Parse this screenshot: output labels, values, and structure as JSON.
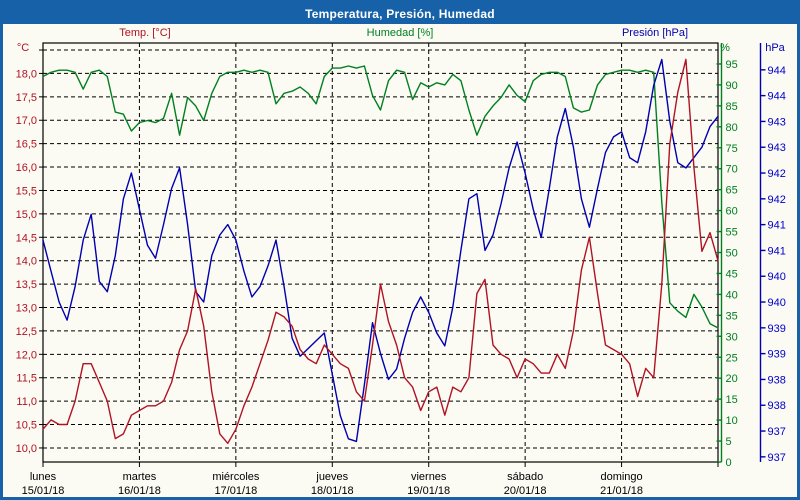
{
  "window": {
    "title": "Temperatura, Presión, Humedad"
  },
  "axis_headers": {
    "temp": "°C",
    "hum": "%",
    "pres": "hPa"
  },
  "theme": {
    "frame_blue": "#1661a8",
    "title_text": "#ffffff",
    "grid_color": "#000000",
    "temp_color": "#b01323",
    "hum_color": "#008020",
    "pres_color": "#0000b0",
    "pres_label_color": "#0000cc",
    "day_label_color": "#000000"
  },
  "chart_data": {
    "type": "line",
    "title": "Temperatura, Presión, Humedad",
    "x_unit": "hours",
    "x_range": [
      0,
      168
    ],
    "x_step_hours": 2,
    "grid": "dashed",
    "days": [
      {
        "name": "lunes",
        "date": "15/01/18"
      },
      {
        "name": "martes",
        "date": "16/01/18"
      },
      {
        "name": "miércoles",
        "date": "17/01/18"
      },
      {
        "name": "jueves",
        "date": "18/01/18"
      },
      {
        "name": "viernes",
        "date": "19/01/18"
      },
      {
        "name": "sábado",
        "date": "20/01/18"
      },
      {
        "name": "domingo",
        "date": "21/01/18"
      }
    ],
    "series": [
      {
        "name": "Temp. [°C]",
        "unit": "°C",
        "color": "#b01323",
        "axis": {
          "side": "left",
          "tick_min": 10.0,
          "tick_max": 18.5,
          "label_max": 18.0,
          "step": 0.5,
          "scale": [
            9.7,
            18.65
          ],
          "decimal_comma": true
        },
        "values": [
          10.4,
          10.6,
          10.5,
          10.5,
          11.0,
          11.8,
          11.8,
          11.4,
          11.0,
          10.2,
          10.3,
          10.7,
          10.8,
          10.9,
          10.9,
          11.0,
          11.4,
          12.1,
          12.5,
          13.4,
          12.6,
          11.2,
          10.3,
          10.1,
          10.4,
          10.9,
          11.3,
          11.8,
          12.3,
          12.9,
          12.8,
          12.6,
          12.1,
          11.9,
          11.8,
          12.2,
          12.0,
          11.8,
          11.7,
          11.2,
          11.0,
          12.2,
          13.5,
          12.7,
          12.2,
          11.5,
          11.3,
          10.8,
          11.2,
          11.3,
          10.7,
          11.3,
          11.2,
          11.5,
          13.3,
          13.6,
          12.2,
          12.0,
          11.9,
          11.5,
          11.9,
          11.8,
          11.6,
          11.6,
          12.0,
          11.7,
          12.5,
          13.8,
          14.5,
          13.3,
          12.2,
          12.1,
          12.0,
          11.8,
          11.1,
          11.7,
          11.5,
          13.5,
          16.5,
          17.6,
          18.3,
          16.0,
          14.2,
          14.6,
          14.0
        ]
      },
      {
        "name": "Humedad [%]",
        "unit": "%",
        "color": "#008020",
        "axis": {
          "side": "right-inner",
          "tick_min": 0,
          "tick_max": 95,
          "label_max": 95,
          "step": 5,
          "scale": [
            0,
            100
          ],
          "decimal_comma": false
        },
        "values": [
          92,
          93,
          93.5,
          93.5,
          93,
          89,
          93,
          93.5,
          92,
          83.5,
          83,
          79,
          81,
          81.5,
          81,
          82,
          88,
          78,
          87,
          85,
          81.5,
          88,
          92,
          93,
          93,
          93.5,
          93,
          93.5,
          93,
          85.5,
          88,
          88.5,
          89.5,
          88,
          85.5,
          92,
          94,
          94,
          94.5,
          94,
          94.5,
          87.5,
          84,
          91,
          93.5,
          93,
          86.5,
          90.5,
          89.5,
          90.5,
          90,
          92.5,
          91,
          84,
          78,
          82.5,
          85,
          87,
          90,
          87.5,
          86,
          91,
          92.5,
          93,
          93,
          92,
          84.5,
          83.5,
          84,
          90,
          92.5,
          93,
          93.5,
          93.5,
          93,
          93.5,
          93,
          62,
          38,
          36,
          34.5,
          40,
          37,
          33,
          32
        ]
      },
      {
        "name": "Presión [hPa]",
        "unit": "hPa",
        "color": "#0000b0",
        "axis": {
          "side": "right-outer",
          "tick_min": 937.0,
          "tick_max": 944.5,
          "label_max": 944.5,
          "step": 0.5,
          "scale": [
            936.9,
            945.02
          ],
          "label_mode": "floor"
        },
        "values": [
          941.2,
          940.6,
          940.0,
          939.65,
          940.3,
          941.2,
          941.7,
          940.4,
          940.2,
          940.9,
          942.0,
          942.5,
          941.8,
          941.1,
          940.85,
          941.5,
          942.2,
          942.6,
          941.5,
          940.2,
          940.0,
          940.9,
          941.3,
          941.5,
          941.2,
          940.6,
          940.1,
          940.3,
          940.7,
          941.2,
          940.3,
          939.3,
          938.95,
          939.1,
          939.25,
          939.4,
          938.6,
          937.8,
          937.35,
          937.3,
          938.4,
          939.6,
          939.0,
          938.5,
          938.7,
          939.3,
          939.8,
          940.1,
          939.8,
          939.4,
          939.15,
          939.9,
          941.0,
          942.0,
          942.1,
          941.0,
          941.3,
          941.9,
          942.6,
          943.1,
          942.5,
          941.8,
          941.25,
          942.2,
          943.2,
          943.75,
          943.0,
          942.0,
          941.45,
          942.2,
          942.9,
          943.2,
          943.3,
          942.8,
          942.7,
          943.3,
          944.2,
          944.7,
          943.5,
          942.7,
          942.6,
          942.8,
          943.0,
          943.4,
          943.6
        ]
      }
    ]
  }
}
